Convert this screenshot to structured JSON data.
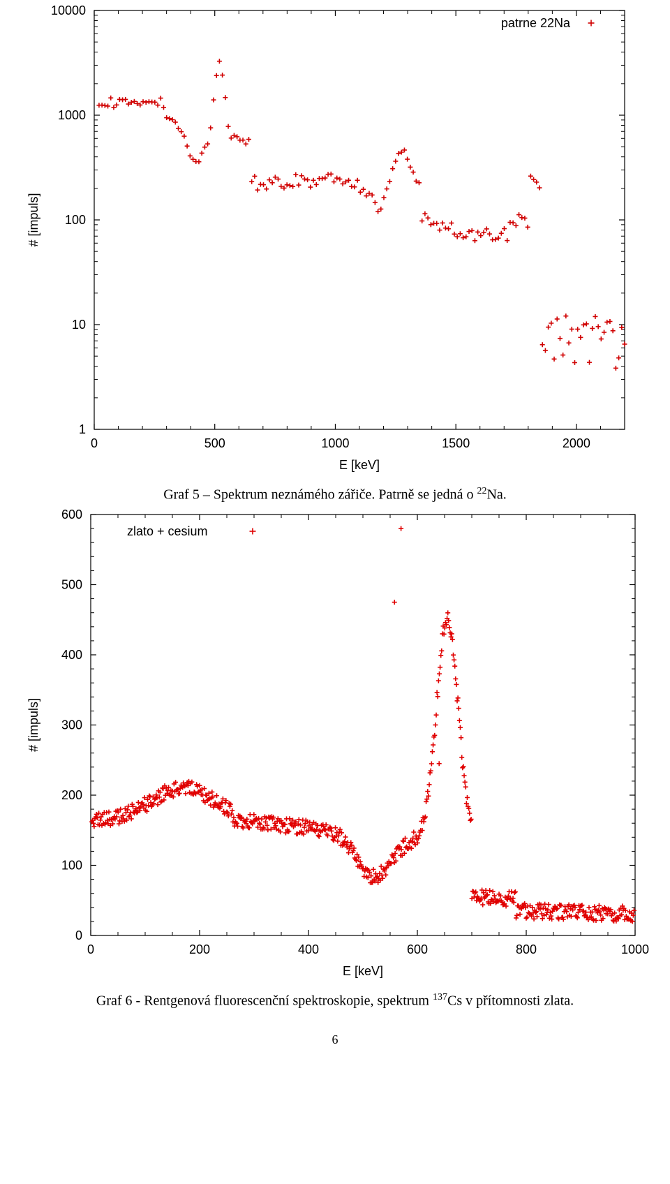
{
  "chart1": {
    "type": "scatter",
    "marker": "cross",
    "marker_color": "#d00000",
    "marker_size": 7,
    "marker_stroke": 1.6,
    "axis_color": "#000000",
    "tick_fontsize": 18,
    "label_fontsize": 18,
    "legend_fontsize": 18,
    "legend_label": "patrne 22Na",
    "xlabel": "E [keV]",
    "ylabel": "# [impuls]",
    "xlim": [
      0,
      2200
    ],
    "x_ticks": [
      0,
      500,
      1000,
      1500,
      2000
    ],
    "yscale": "log",
    "ylim": [
      1,
      10000
    ],
    "y_ticks": [
      1,
      10,
      100,
      1000,
      10000
    ],
    "y_tick_labels": [
      "1",
      "10",
      "100",
      "1000",
      "10000"
    ]
  },
  "chart2": {
    "type": "scatter",
    "marker": "cross",
    "marker_color": "#e00000",
    "marker_size": 7,
    "marker_stroke": 1.6,
    "axis_color": "#000000",
    "tick_fontsize": 18,
    "label_fontsize": 18,
    "legend_fontsize": 18,
    "legend_label": "zlato + cesium",
    "xlabel": "E [keV]",
    "ylabel": "# [impuls]",
    "xlim": [
      0,
      1000
    ],
    "x_ticks": [
      0,
      200,
      400,
      600,
      800,
      1000
    ],
    "yscale": "linear",
    "ylim": [
      0,
      600
    ],
    "y_ticks": [
      0,
      100,
      200,
      300,
      400,
      500,
      600
    ]
  },
  "caption1_pre": "Graf 5 – Spektrum neznámého zářiče. Patrně se jedná o ",
  "caption1_sup": "22",
  "caption1_post": "Na.",
  "caption2_pre": "Graf 6 - Rentgenová fluorescenční spektroskopie, spektrum ",
  "caption2_sup": "137",
  "caption2_post": "Cs v přítomnosti zlata.",
  "page_number": "6"
}
